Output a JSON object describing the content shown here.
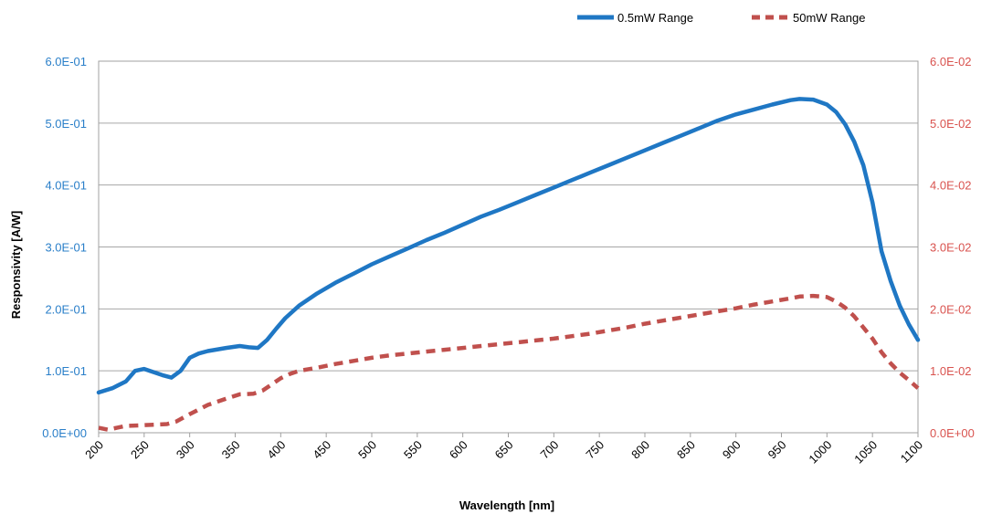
{
  "chart_data": {
    "type": "line",
    "xlabel": "Wavelength [nm]",
    "ylabel": "Responsivity [A/W]",
    "xlim": [
      200,
      1100
    ],
    "x_ticks": [
      "200",
      "250",
      "300",
      "350",
      "400",
      "450",
      "500",
      "550",
      "600",
      "650",
      "700",
      "750",
      "800",
      "850",
      "900",
      "950",
      "1000",
      "1050",
      "1100"
    ],
    "ylim_left": [
      0,
      0.6
    ],
    "y_ticks_left": [
      "0.0E+00",
      "1.0E-01",
      "2.0E-01",
      "3.0E-01",
      "4.0E-01",
      "5.0E-01",
      "6.0E-01"
    ],
    "ylim_right": [
      0,
      0.06
    ],
    "y_ticks_right": [
      "0.0E+00",
      "1.0E-02",
      "2.0E-02",
      "3.0E-02",
      "4.0E-02",
      "5.0E-02",
      "6.0E-02"
    ],
    "grid": "horizontal",
    "legend_position": "top-right",
    "series": [
      {
        "name": "0.5mW Range",
        "axis": "left",
        "color": "#1f77c4",
        "style": "solid",
        "x": [
          200,
          215,
          230,
          240,
          250,
          260,
          270,
          280,
          290,
          300,
          310,
          320,
          340,
          355,
          365,
          375,
          385,
          395,
          405,
          420,
          440,
          460,
          480,
          500,
          520,
          540,
          560,
          580,
          600,
          620,
          640,
          660,
          680,
          700,
          720,
          740,
          760,
          780,
          800,
          820,
          840,
          860,
          880,
          900,
          920,
          940,
          960,
          970,
          985,
          1000,
          1010,
          1020,
          1030,
          1040,
          1050,
          1060,
          1070,
          1080,
          1090,
          1100
        ],
        "y": [
          0.065,
          0.072,
          0.083,
          0.1,
          0.103,
          0.098,
          0.093,
          0.089,
          0.1,
          0.121,
          0.128,
          0.132,
          0.137,
          0.14,
          0.138,
          0.137,
          0.15,
          0.168,
          0.185,
          0.205,
          0.225,
          0.242,
          0.257,
          0.272,
          0.285,
          0.298,
          0.311,
          0.323,
          0.336,
          0.349,
          0.36,
          0.372,
          0.384,
          0.396,
          0.408,
          0.42,
          0.432,
          0.444,
          0.456,
          0.468,
          0.48,
          0.492,
          0.504,
          0.514,
          0.522,
          0.53,
          0.537,
          0.539,
          0.538,
          0.53,
          0.518,
          0.498,
          0.47,
          0.432,
          0.372,
          0.293,
          0.245,
          0.205,
          0.175,
          0.15
        ]
      },
      {
        "name": "50mW Range",
        "axis": "right",
        "color": "#c0504d",
        "style": "dashed",
        "x": [
          200,
          210,
          220,
          230,
          245,
          260,
          275,
          285,
          300,
          320,
          340,
          355,
          370,
          380,
          390,
          400,
          410,
          420,
          440,
          460,
          480,
          500,
          520,
          540,
          560,
          580,
          600,
          620,
          640,
          660,
          680,
          700,
          720,
          740,
          760,
          780,
          800,
          820,
          840,
          860,
          880,
          900,
          920,
          940,
          960,
          970,
          985,
          1000,
          1010,
          1020,
          1030,
          1040,
          1050,
          1060,
          1070,
          1080,
          1090,
          1100
        ],
        "y": [
          0.0008,
          0.0005,
          0.0008,
          0.0011,
          0.0012,
          0.0013,
          0.0014,
          0.0018,
          0.003,
          0.0045,
          0.0055,
          0.0062,
          0.0063,
          0.0068,
          0.0078,
          0.0088,
          0.0095,
          0.01,
          0.0105,
          0.0111,
          0.0116,
          0.0121,
          0.0125,
          0.0128,
          0.0131,
          0.0134,
          0.0137,
          0.014,
          0.0143,
          0.0146,
          0.0149,
          0.0152,
          0.0156,
          0.016,
          0.0165,
          0.017,
          0.0176,
          0.0181,
          0.0186,
          0.0191,
          0.0196,
          0.0201,
          0.0207,
          0.0212,
          0.0217,
          0.022,
          0.0221,
          0.0219,
          0.0212,
          0.0202,
          0.0188,
          0.017,
          0.0152,
          0.013,
          0.0112,
          0.0097,
          0.0085,
          0.0072
        ]
      }
    ]
  }
}
